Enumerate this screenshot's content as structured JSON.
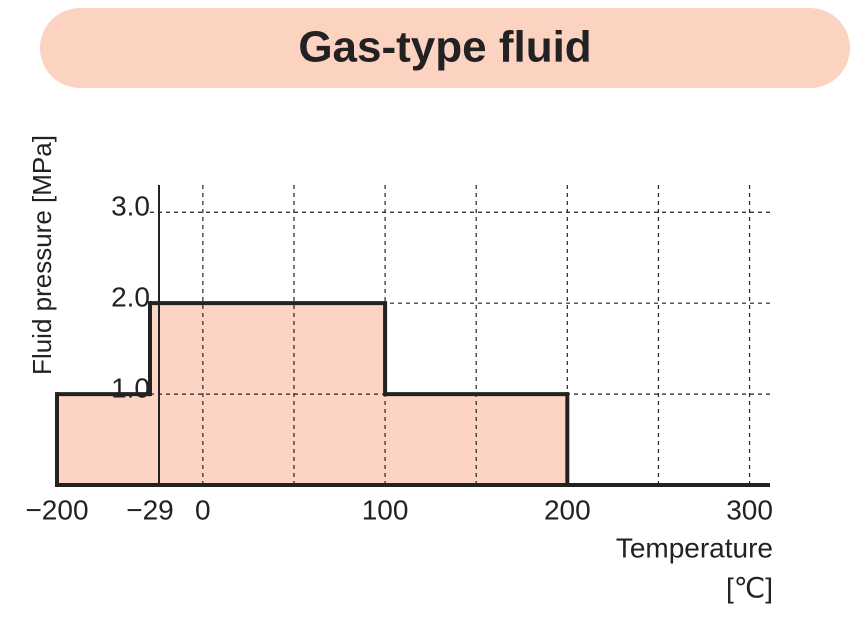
{
  "chart_data": {
    "type": "step-area",
    "title": "Gas-type fluid",
    "y_label": "Fluid pressure [MPa]",
    "x_label": "Temperature",
    "x_unit": "[℃]",
    "x_from": [
      -200,
      -29,
      100
    ],
    "x_to": [
      -29,
      100,
      200
    ],
    "values": [
      1.0,
      2.0,
      1.0
    ],
    "color": "#fdd3c3",
    "title_background": "#fcd3c1",
    "xlim": [
      -200,
      320
    ],
    "x_break": -29,
    "xticks": [
      {
        "value": -200,
        "label": "−200"
      },
      {
        "value": -29,
        "label": "−29"
      },
      0,
      100,
      200,
      300
    ],
    "x_gridlines": [
      0,
      50,
      100,
      150,
      200,
      250,
      300
    ],
    "ylim": [
      0,
      3.3
    ],
    "yticks": [
      {
        "value": 1,
        "label": "1.0"
      },
      {
        "value": 2,
        "label": "2.0"
      },
      {
        "value": 3,
        "label": "3.0"
      }
    ],
    "grid": true
  }
}
